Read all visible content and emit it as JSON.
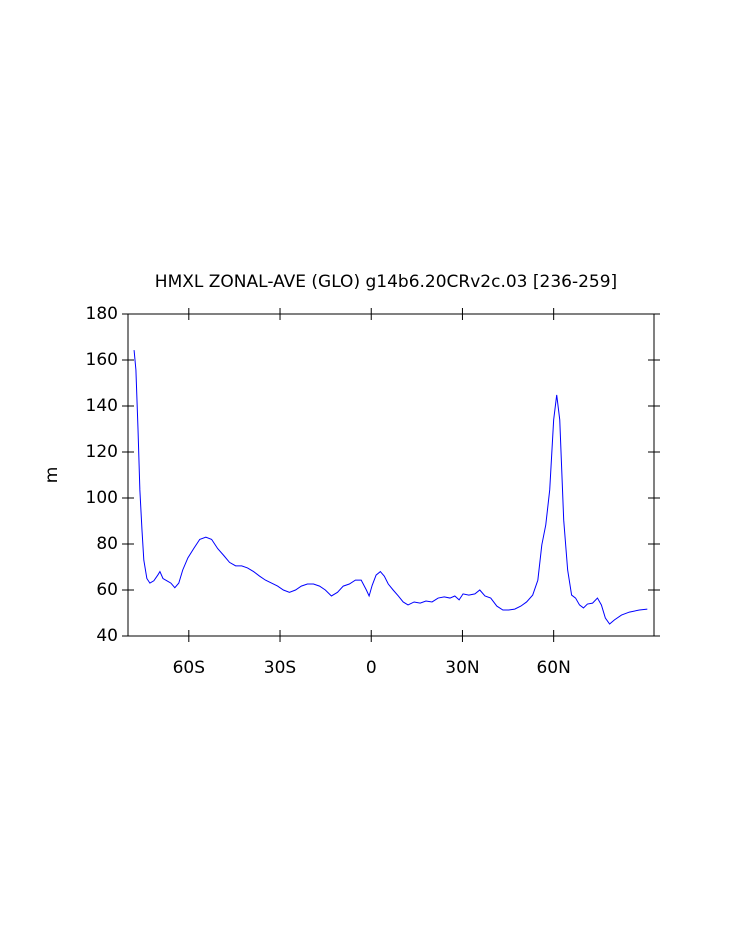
{
  "chart_data": {
    "type": "line",
    "title": "HMXL ZONAL-AVE (GLO) g14b6.20CRv2c.03 [236-259]",
    "y_label": "m",
    "xlim": [
      -80,
      93
    ],
    "ylim": [
      40,
      180
    ],
    "xticks": [
      {
        "value": -60,
        "label": "60S"
      },
      {
        "value": -30,
        "label": "30S"
      },
      0,
      {
        "value": 30,
        "label": "30N"
      },
      {
        "value": 60,
        "label": "60N"
      }
    ],
    "yticks": [
      40,
      60,
      80,
      100,
      120,
      140,
      160,
      180
    ],
    "series": [
      {
        "color": "#0000ff",
        "x": [
          -78,
          -77.4,
          -76.7,
          -76.1,
          -75.4,
          -74.8,
          -73.8,
          -72.8,
          -71.5,
          -70.2,
          -69.5,
          -68.5,
          -67.2,
          -65.9,
          -64.6,
          -63.3,
          -62,
          -60.3,
          -58.4,
          -56.4,
          -54.4,
          -52.5,
          -50.5,
          -48.5,
          -46.6,
          -44.6,
          -42.6,
          -40.7,
          -38.7,
          -36.7,
          -34.8,
          -32.8,
          -30.8,
          -28.9,
          -26.9,
          -24.9,
          -23,
          -21,
          -19,
          -17,
          -15.1,
          -13.1,
          -11.1,
          -9.2,
          -7.2,
          -5.2,
          -3.3,
          -1.6,
          -0.7,
          0.3,
          1.6,
          3,
          4.3,
          5.6,
          7.2,
          8.9,
          10.5,
          12.1,
          14.1,
          16.1,
          18,
          20,
          22,
          24,
          25.9,
          27.5,
          28.9,
          30.2,
          32.1,
          34.1,
          35.7,
          37.4,
          39.3,
          41.3,
          43.3,
          45.2,
          47.2,
          49.2,
          51.1,
          53.1,
          54.8,
          56.1,
          57.4,
          58.7,
          60,
          61,
          62,
          63.3,
          64.6,
          65.9,
          67.2,
          68.5,
          69.8,
          71.1,
          72.8,
          74.4,
          75.7,
          77,
          78.4,
          80,
          82.3,
          84.9,
          88.2,
          90.8
        ],
        "values": [
          164.3,
          155.7,
          129.6,
          103.5,
          86,
          73,
          65,
          63,
          64,
          66.5,
          68,
          65,
          64,
          63,
          61,
          63,
          68.7,
          74,
          78,
          82,
          83,
          82,
          78,
          75,
          72,
          70.5,
          70.5,
          69.6,
          68,
          66,
          64.3,
          63,
          61.7,
          60,
          59,
          60,
          61.7,
          62.6,
          62.6,
          61.7,
          60,
          57.4,
          59,
          61.7,
          62.6,
          64.3,
          64.3,
          60,
          57.4,
          62,
          66.5,
          68,
          66,
          62.6,
          60,
          57.4,
          54.8,
          53.5,
          54.8,
          54.3,
          55.2,
          54.8,
          56.5,
          57,
          56.5,
          57.4,
          55.7,
          58.3,
          57.8,
          58.3,
          60,
          57.4,
          56.5,
          53,
          51.3,
          51.3,
          51.7,
          53,
          54.8,
          57.8,
          64.3,
          79.6,
          88.3,
          103.5,
          134,
          144.8,
          134,
          90.4,
          68.7,
          57.8,
          56.5,
          53.5,
          52.2,
          53.9,
          54.3,
          56.5,
          53.5,
          47.8,
          45.2,
          47,
          49.1,
          50.4,
          51.3,
          51.7
        ]
      }
    ]
  }
}
